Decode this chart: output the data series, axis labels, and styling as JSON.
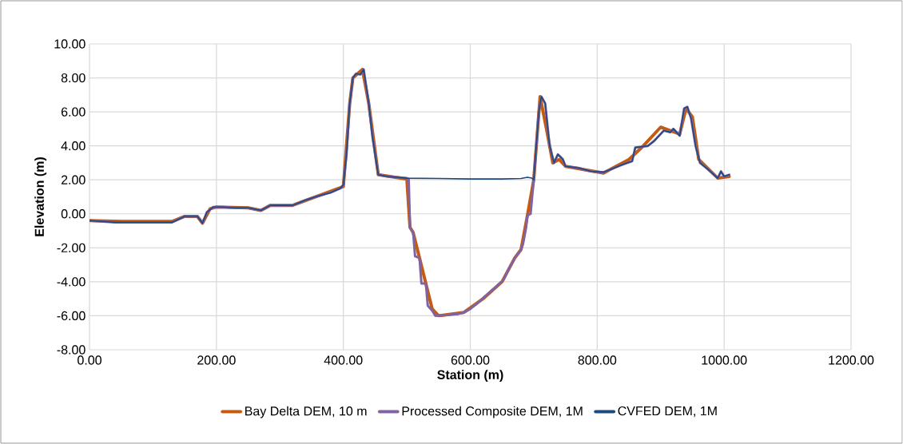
{
  "chart_data": {
    "type": "line",
    "xlabel": "Station (m)",
    "ylabel": "Elevation (m)",
    "xlim": [
      0,
      1200
    ],
    "ylim": [
      -8,
      10
    ],
    "xticks": [
      {
        "value": 0,
        "label": "0.00"
      },
      {
        "value": 200,
        "label": "200.00"
      },
      {
        "value": 400,
        "label": "400.00"
      },
      {
        "value": 600,
        "label": "600.00"
      },
      {
        "value": 800,
        "label": "800.00"
      },
      {
        "value": 1000,
        "label": "1000.00"
      },
      {
        "value": 1200,
        "label": "1200.00"
      }
    ],
    "yticks": [
      {
        "value": -8,
        "label": "-8.00"
      },
      {
        "value": -6,
        "label": "-6.00"
      },
      {
        "value": -4,
        "label": "-4.00"
      },
      {
        "value": -2,
        "label": "-2.00"
      },
      {
        "value": 0,
        "label": "0.00"
      },
      {
        "value": 2,
        "label": "2.00"
      },
      {
        "value": 4,
        "label": "4.00"
      },
      {
        "value": 6,
        "label": "6.00"
      },
      {
        "value": 8,
        "label": "8.00"
      },
      {
        "value": 10,
        "label": "10.00"
      }
    ],
    "grid": true,
    "legend": "bottom",
    "marker": "none",
    "line_style": "solid",
    "series": [
      {
        "name": "Bay Delta DEM, 10 m",
        "color": "#c55a11",
        "x": [
          0,
          50,
          130,
          150,
          170,
          178,
          190,
          200,
          250,
          270,
          285,
          320,
          360,
          400,
          410,
          415,
          430,
          440,
          455,
          500,
          505,
          510,
          520,
          530,
          540,
          550,
          590,
          620,
          650,
          670,
          680,
          690,
          700,
          710,
          720,
          730,
          740,
          750,
          810,
          850,
          870,
          900,
          930,
          940,
          950,
          960,
          990,
          1008
        ],
        "values": [
          -0.4,
          -0.45,
          -0.45,
          -0.15,
          -0.15,
          -0.55,
          0.3,
          0.4,
          0.35,
          0.2,
          0.5,
          0.5,
          1.05,
          1.6,
          6.5,
          8.0,
          8.5,
          6.5,
          2.3,
          2.05,
          -0.8,
          -1.1,
          -2.6,
          -4.1,
          -5.6,
          -6.0,
          -5.8,
          -5.0,
          -4.0,
          -2.6,
          -2.1,
          -0.1,
          2.0,
          6.9,
          5.0,
          3.0,
          3.2,
          2.8,
          2.4,
          3.2,
          3.9,
          5.1,
          4.7,
          6.2,
          5.7,
          3.2,
          2.1,
          2.2
        ]
      },
      {
        "name": "Processed Composite DEM, 1M",
        "color": "#8064a2",
        "x": [
          0,
          40,
          130,
          150,
          170,
          178,
          185,
          195,
          210,
          230,
          250,
          270,
          285,
          320,
          340,
          360,
          380,
          395,
          400,
          405,
          410,
          415,
          420,
          427,
          432,
          440,
          446,
          455,
          470,
          500,
          503,
          505,
          510,
          513,
          520,
          523,
          530,
          533,
          540,
          545,
          580,
          590,
          600,
          610,
          625,
          640,
          652,
          660,
          670,
          680,
          683,
          688,
          690,
          695,
          700,
          708,
          712,
          718,
          725,
          732,
          738,
          746,
          750,
          770,
          790,
          810,
          820,
          840,
          855,
          860,
          880,
          890,
          905,
          915,
          920,
          930,
          937,
          942,
          948,
          955,
          962,
          975,
          990,
          995,
          1000,
          1008
        ],
        "values": [
          -0.4,
          -0.5,
          -0.5,
          -0.15,
          -0.15,
          -0.55,
          0.1,
          0.4,
          0.4,
          0.35,
          0.35,
          0.2,
          0.5,
          0.5,
          0.8,
          1.05,
          1.25,
          1.5,
          1.7,
          3.5,
          6.5,
          8.0,
          8.25,
          8.2,
          8.5,
          6.5,
          4.5,
          2.3,
          2.2,
          2.1,
          2.05,
          -0.8,
          -1.1,
          -2.5,
          -2.6,
          -4.1,
          -4.1,
          -5.4,
          -5.7,
          -6.0,
          -5.9,
          -5.8,
          -5.6,
          -5.3,
          -4.8,
          -4.3,
          -3.9,
          -3.3,
          -2.6,
          -2.1,
          -1.8,
          -0.8,
          -0.1,
          0.0,
          2.0,
          6.0,
          6.9,
          6.5,
          4.0,
          3.0,
          3.5,
          3.2,
          2.8,
          2.7,
          2.5,
          2.45,
          2.6,
          2.9,
          3.1,
          3.9,
          4.0,
          4.3,
          4.9,
          4.8,
          5.0,
          4.6,
          6.2,
          6.3,
          5.6,
          4.0,
          3.0,
          2.6,
          2.1,
          2.5,
          2.2,
          2.3
        ]
      },
      {
        "name": "CVFED DEM, 1M",
        "color": "#1f497d",
        "x": [
          0,
          40,
          130,
          150,
          170,
          178,
          185,
          195,
          210,
          230,
          250,
          270,
          285,
          320,
          340,
          360,
          380,
          395,
          400,
          405,
          410,
          415,
          420,
          427,
          432,
          440,
          446,
          455,
          470,
          500,
          550,
          600,
          650,
          680,
          690,
          697,
          700,
          708,
          712,
          718,
          725,
          732,
          738,
          746,
          750,
          770,
          790,
          810,
          820,
          840,
          855,
          860,
          880,
          890,
          905,
          915,
          920,
          930,
          937,
          942,
          948,
          955,
          962,
          975,
          990,
          995,
          1000,
          1008
        ],
        "values": [
          -0.4,
          -0.5,
          -0.5,
          -0.15,
          -0.15,
          -0.55,
          0.1,
          0.4,
          0.4,
          0.35,
          0.35,
          0.2,
          0.5,
          0.5,
          0.8,
          1.05,
          1.25,
          1.5,
          1.7,
          3.5,
          6.5,
          8.0,
          8.25,
          8.2,
          8.5,
          6.5,
          4.5,
          2.3,
          2.2,
          2.1,
          2.08,
          2.05,
          2.05,
          2.08,
          2.15,
          2.1,
          2.0,
          6.0,
          6.9,
          6.5,
          4.0,
          3.0,
          3.5,
          3.2,
          2.8,
          2.7,
          2.5,
          2.45,
          2.6,
          2.9,
          3.1,
          3.9,
          4.0,
          4.3,
          4.9,
          4.8,
          5.0,
          4.6,
          6.2,
          6.3,
          5.6,
          4.0,
          3.0,
          2.6,
          2.1,
          2.5,
          2.2,
          2.3
        ]
      }
    ]
  }
}
